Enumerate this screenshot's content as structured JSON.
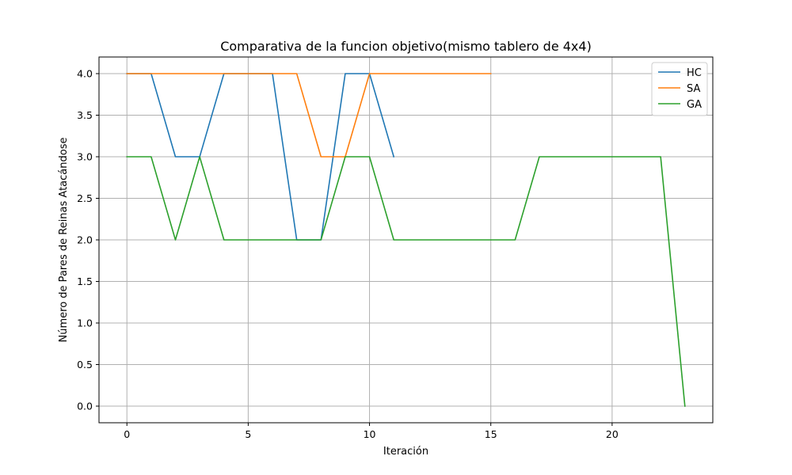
{
  "chart_data": {
    "type": "line",
    "title": "Comparativa de la funcion objetivo(mismo tablero de 4x4)",
    "xlabel": "Iteración",
    "ylabel": "Número de Pares de Reinas Atacándose",
    "xlim": [
      -1.15,
      24.15
    ],
    "ylim": [
      -0.2,
      4.2
    ],
    "x_ticks": [
      0,
      5,
      10,
      15,
      20
    ],
    "x_tick_labels": [
      "0",
      "5",
      "10",
      "15",
      "20"
    ],
    "y_ticks": [
      0.0,
      0.5,
      1.0,
      1.5,
      2.0,
      2.5,
      3.0,
      3.5,
      4.0
    ],
    "y_tick_labels": [
      "0.0",
      "0.5",
      "1.0",
      "1.5",
      "2.0",
      "2.5",
      "3.0",
      "3.5",
      "4.0"
    ],
    "grid": true,
    "legend_position": "top-right",
    "series": [
      {
        "name": "HC",
        "color": "#1f77b4",
        "x": [
          0,
          1,
          2,
          3,
          4,
          5,
          6,
          7,
          8,
          9,
          10,
          11
        ],
        "values": [
          4,
          4,
          3,
          3,
          4,
          4,
          4,
          2,
          2,
          4,
          4,
          3
        ]
      },
      {
        "name": "SA",
        "color": "#ff7f0e",
        "x": [
          0,
          1,
          2,
          3,
          4,
          5,
          6,
          7,
          8,
          9,
          10,
          11,
          12,
          13,
          14,
          15
        ],
        "values": [
          4,
          4,
          4,
          4,
          4,
          4,
          4,
          4,
          3,
          3,
          4,
          4,
          4,
          4,
          4,
          4
        ]
      },
      {
        "name": "GA",
        "color": "#2ca02c",
        "x": [
          0,
          1,
          2,
          3,
          4,
          5,
          6,
          7,
          8,
          9,
          10,
          11,
          12,
          13,
          14,
          15,
          16,
          17,
          18,
          19,
          20,
          21,
          22,
          23
        ],
        "values": [
          3,
          3,
          2,
          3,
          2,
          2,
          2,
          2,
          2,
          3,
          3,
          2,
          2,
          2,
          2,
          2,
          2,
          3,
          3,
          3,
          3,
          3,
          3,
          0
        ]
      }
    ]
  }
}
